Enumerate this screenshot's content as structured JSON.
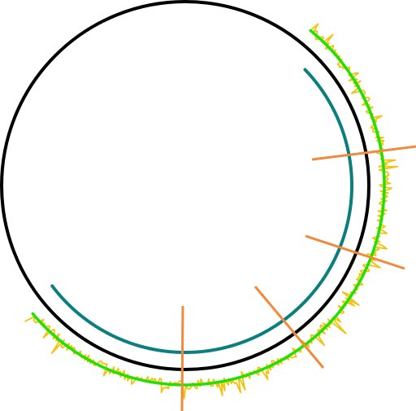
{
  "diagram": {
    "background_color": "#ffffff",
    "main_circle": {
      "color": "#000000"
    },
    "inner_arc": {
      "color": "#0b7e7e"
    },
    "outer_band": {
      "color": "#22e000"
    },
    "noise_trace": {
      "color": "#f4c20d"
    },
    "radial_ticks": {
      "color": "#f08a3c",
      "count": 4
    }
  }
}
